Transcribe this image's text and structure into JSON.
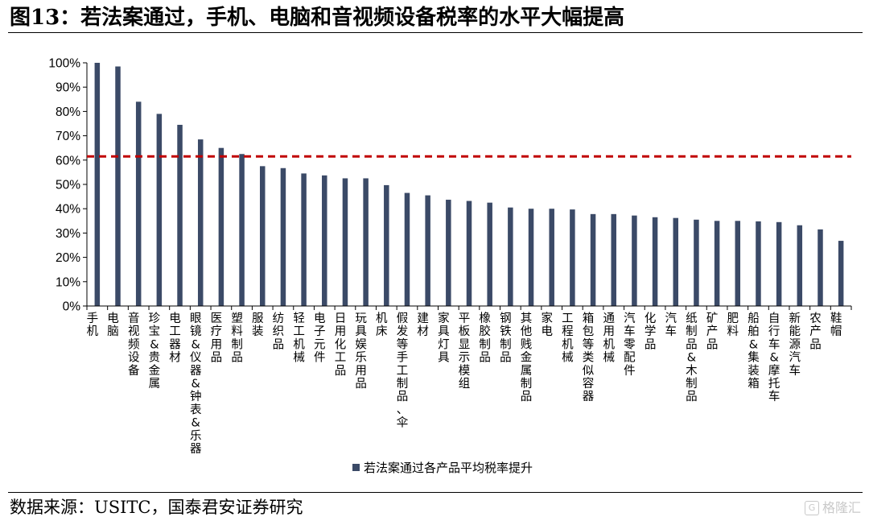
{
  "figure": {
    "title": "图13：若法案通过，手机、电脑和音视频设备税率的水平大幅提高",
    "source": "数据来源：USITC，国泰君安证券研究",
    "watermark": "格隆汇"
  },
  "colors": {
    "bar": "#3b4a67",
    "reference_line": "#c00000"
  },
  "chart_data": {
    "type": "bar",
    "title": "",
    "xlabel": "",
    "ylabel": "",
    "ylim": [
      0,
      1.0
    ],
    "yticks": [
      "0%",
      "10%",
      "20%",
      "30%",
      "40%",
      "50%",
      "60%",
      "70%",
      "80%",
      "90%",
      "100%"
    ],
    "grid": false,
    "legend": {
      "position": "bottom",
      "entries": [
        "若法案通过各产品平均税率提升"
      ]
    },
    "reference_line": {
      "value": 0.615,
      "style": "dashed"
    },
    "categories": [
      "手机",
      "电脑",
      "音视频设备",
      "珍宝&贵金属",
      "电工器材",
      "眼镜&仪器&钟表&乐器",
      "医疗用品",
      "塑料制品",
      "服装",
      "纺织品",
      "轻工机械",
      "电子元件",
      "日用化工品",
      "玩具娱乐用品",
      "机床",
      "假发等手工制品、伞",
      "建材",
      "家具灯具",
      "平板显示模组",
      "橡胶制品",
      "钢铁制品",
      "其他贱金属制品",
      "家电",
      "工程机械",
      "箱包等类似容器",
      "通用机械",
      "汽车零配件",
      "化学品",
      "汽车",
      "纸制品&木制品",
      "矿产品",
      "肥料",
      "船舶&集装箱",
      "自行车&摩托车",
      "新能源汽车",
      "农产品",
      "鞋帽"
    ],
    "series": [
      {
        "name": "若法案通过各产品平均税率提升",
        "values": [
          1.0,
          0.985,
          0.84,
          0.79,
          0.745,
          0.685,
          0.65,
          0.625,
          0.575,
          0.567,
          0.545,
          0.537,
          0.525,
          0.525,
          0.497,
          0.465,
          0.455,
          0.437,
          0.432,
          0.425,
          0.405,
          0.4,
          0.4,
          0.397,
          0.378,
          0.378,
          0.372,
          0.365,
          0.362,
          0.355,
          0.35,
          0.35,
          0.348,
          0.345,
          0.332,
          0.315,
          0.268
        ]
      }
    ]
  }
}
